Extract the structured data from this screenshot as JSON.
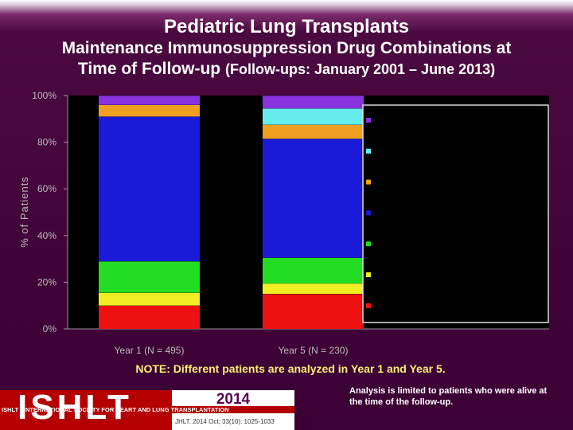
{
  "header": {
    "title": "Pediatric Lung Transplants",
    "subtitle_line1": "Maintenance Immunosuppression Drug Combinations at",
    "subtitle_line2": "Time of Follow-up",
    "subtitle_paren": "(Follow-ups: January 2001 – June 2013)"
  },
  "chart_data": {
    "type": "bar",
    "stacked": true,
    "ylabel": "% of Patients",
    "ylim": [
      0,
      100
    ],
    "yticks": [
      "0%",
      "20%",
      "40%",
      "60%",
      "80%",
      "100%"
    ],
    "categories": [
      "Year 1 (N = 495)",
      "Year 5 (N = 230)"
    ],
    "series": [
      {
        "color": "#ee1111",
        "values": [
          10,
          15
        ]
      },
      {
        "color": "#eeee22",
        "values": [
          5.5,
          4.5
        ]
      },
      {
        "color": "#22dd22",
        "values": [
          13.5,
          11
        ]
      },
      {
        "color": "#1a1ad8",
        "values": [
          62,
          51
        ]
      },
      {
        "color": "#f0a020",
        "values": [
          5,
          6
        ]
      },
      {
        "color": "#66eeee",
        "values": [
          0,
          7
        ]
      },
      {
        "color": "#8833dd",
        "values": [
          4,
          5.5
        ]
      }
    ],
    "legend_position": "right"
  },
  "footer": {
    "note": "NOTE: Different patients are analyzed in Year 1 and Year 5.",
    "analysis": "Analysis is limited to patients who were alive at the time of the follow-up."
  },
  "branding": {
    "logo_word": "ISHLT",
    "logo_sub": "ISHLT • INTERNATIONAL SOCIETY FOR HEART AND LUNG TRANSPLANTATION",
    "year": "2014",
    "citation": "JHLT. 2014 Oct; 33(10): 1025-1033"
  }
}
